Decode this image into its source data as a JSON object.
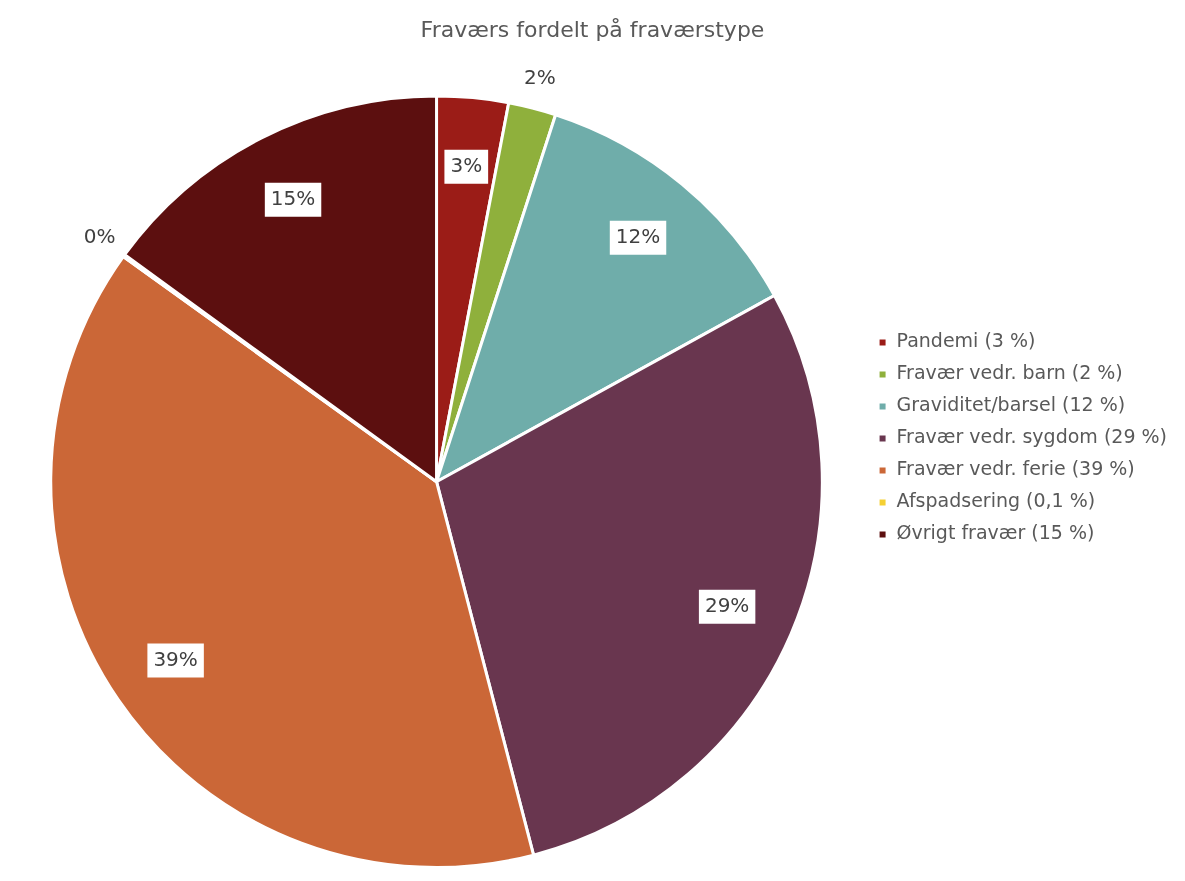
{
  "chart_data": {
    "type": "pie",
    "title": "Fraværs fordelt på fraværstype",
    "categories": [
      "Pandemi (3 %)",
      "Fravær vedr. barn (2 %)",
      "Graviditet/barsel (12 %)",
      "Fravær vedr. sygdom (29 %)",
      "Fravær vedr. ferie (39 %)",
      "Afspadsering (0,1 %)",
      "Øvrigt fravær (15 %)"
    ],
    "values": [
      3,
      2,
      12,
      29,
      39,
      0.1,
      15
    ],
    "colors": [
      "#9b1c17",
      "#8fb03c",
      "#6fadaa",
      "#69364f",
      "#cb6737",
      "#f5d033",
      "#5c0f0f"
    ],
    "value_labels": [
      "3%",
      "2%",
      "12%",
      "29%",
      "39%",
      "0%",
      "15%"
    ],
    "legend": "right"
  }
}
